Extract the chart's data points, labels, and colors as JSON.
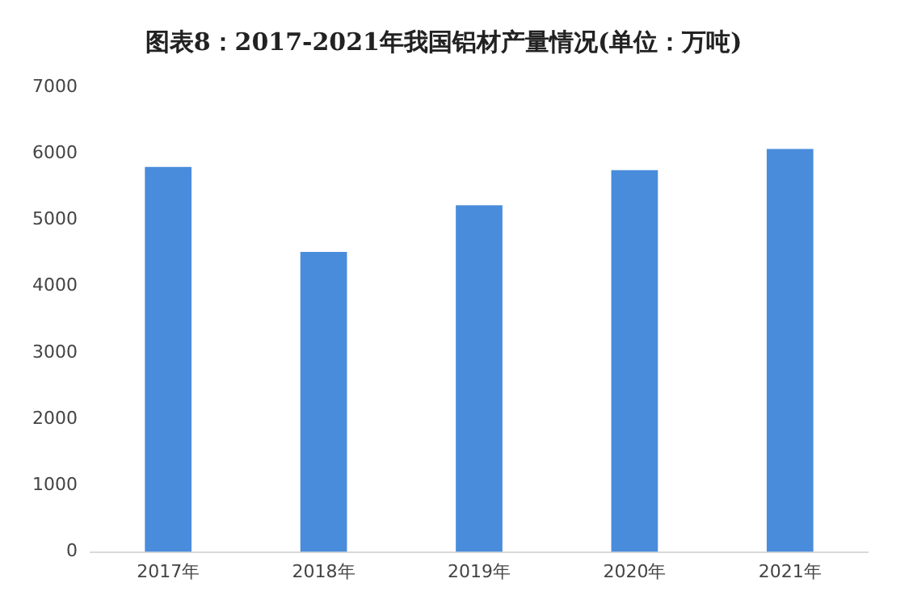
{
  "chart_data": {
    "type": "bar",
    "title": "图表8：2017-2021年我国铝材产量情况(单位：万吨)",
    "categories": [
      "2017年",
      "2018年",
      "2019年",
      "2020年",
      "2021年"
    ],
    "values": [
      5800,
      4520,
      5220,
      5750,
      6070
    ],
    "color": "#4a8cdc",
    "ylim": [
      0,
      7000
    ],
    "yticks": [
      0,
      1000,
      2000,
      3000,
      4000,
      5000,
      6000,
      7000
    ],
    "grid": false
  }
}
